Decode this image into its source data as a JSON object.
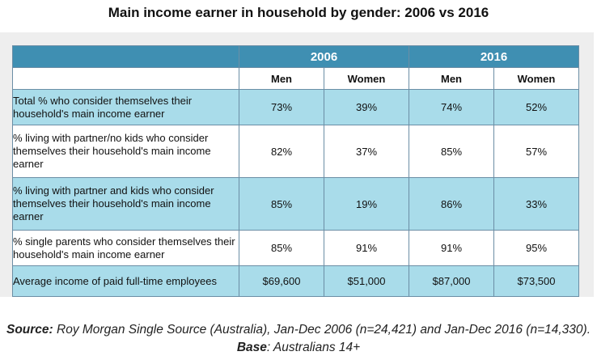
{
  "title": "Main income earner in household by gender: 2006 vs 2016",
  "chart_data": {
    "type": "table",
    "title": "Main income earner in household by gender: 2006 vs 2016",
    "year_headers": [
      "2006",
      "2016"
    ],
    "column_headers": [
      "Men",
      "Women",
      "Men",
      "Women"
    ],
    "rows": [
      {
        "label": "Total % who consider themselves their household's main income earner",
        "values": [
          "73%",
          "39%",
          "74%",
          "52%"
        ]
      },
      {
        "label": "% living with partner/no kids who consider themselves their household's main income earner",
        "values": [
          "82%",
          "37%",
          "85%",
          "57%"
        ]
      },
      {
        "label": "% living with partner and kids who consider themselves their household's main income earner",
        "values": [
          "85%",
          "19%",
          "86%",
          "33%"
        ]
      },
      {
        "label": "% single parents who consider themselves their household's main income earner",
        "values": [
          "85%",
          "91%",
          "91%",
          "95%"
        ]
      },
      {
        "label": "Average income of paid full-time employees",
        "values": [
          "$69,600",
          "$51,000",
          "$87,000",
          "$73,500"
        ]
      }
    ]
  },
  "source": {
    "source_label": "Source:",
    "source_text": " Roy Morgan Single Source (Australia), Jan-Dec 2006 (n=24,421) and Jan-Dec 2016 (n=14,330). ",
    "base_label": "Base",
    "base_text": ": Australians 14+"
  },
  "colors": {
    "header_bg": "#3f8fb2",
    "shaded_row": "#a9dcea",
    "border": "#6b8ea5"
  }
}
